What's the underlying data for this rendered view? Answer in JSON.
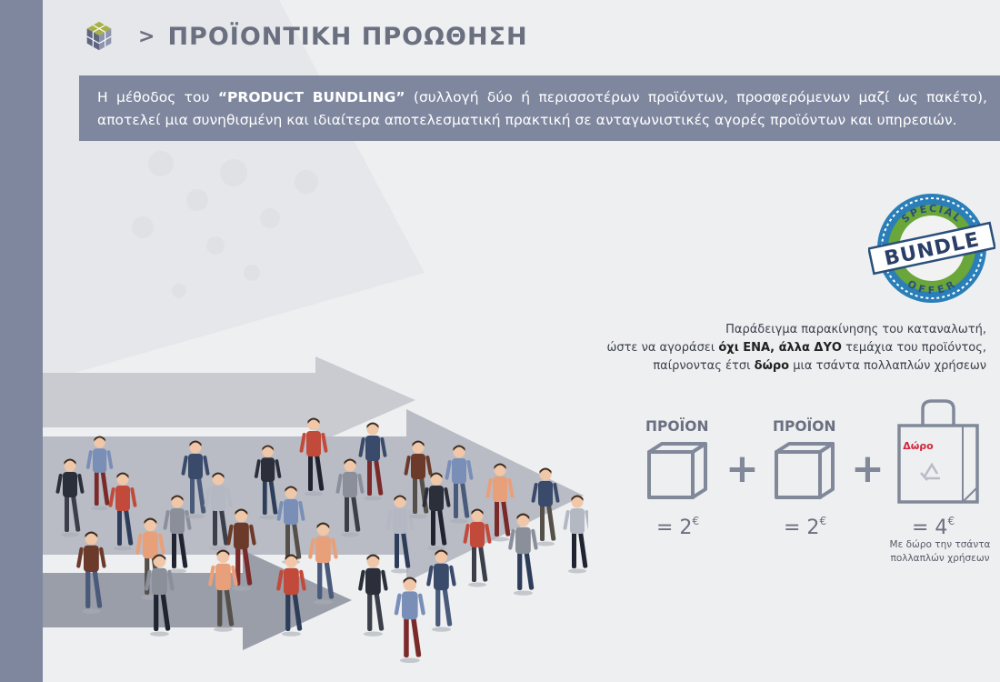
{
  "header": {
    "chevron": ">",
    "title": "ΠΡΟΪΟΝΤΙΚΗ ΠΡΟΩΘΗΣΗ",
    "logo_icon": "cube-cluster-icon"
  },
  "banner": {
    "pre": "Η μέθοδος του ",
    "highlight": "“PRODUCT BUNDLING”",
    "post": " (συλλογή δύο ή περισσοτέρων προϊόντων, προσφερόμενων μαζί ως πακέτο), αποτελεί μια συνηθισμένη και ιδιαίτερα αποτελεσματική πρακτική σε ανταγωνιστικές αγορές προϊόντων και υπηρεσιών."
  },
  "stamp": {
    "top": "SPECIAL",
    "middle": "BUNDLE",
    "bottom": "OFFER"
  },
  "caption": {
    "line1": "Παράδειγμα παρακίνησης του καταναλωτή,",
    "line2_pre": "ώστε να αγοράσει ",
    "line2_bold": "όχι ΕΝΑ, άλλα ΔΥΟ",
    "line2_post": " τεμάχια του προϊόντος,",
    "line3_pre": "παίρνοντας έτσι ",
    "line3_bold": "δώρο",
    "line3_post": " μια τσάντα πολλαπλών χρήσεων"
  },
  "bundle": {
    "product1": {
      "label": "ΠΡΟΪΟΝ",
      "price": "= 2",
      "currency": "€"
    },
    "product2": {
      "label": "ΠΡΟΪΟΝ",
      "price": "= 2",
      "currency": "€"
    },
    "plus": "+",
    "gift": {
      "tag": "Δώρο",
      "price": "= 4",
      "currency": "€",
      "note_line1": "Με δώρο την τσάντα",
      "note_line2": "πολλαπλών χρήσεων",
      "icon": "shopping-bag-recycle-icon"
    }
  },
  "colors": {
    "accent": "#7f879f",
    "text": "#6a7080",
    "gift_tag": "#d0263b",
    "stamp_blue": "#2a7fb8",
    "stamp_green": "#6aa63a"
  }
}
